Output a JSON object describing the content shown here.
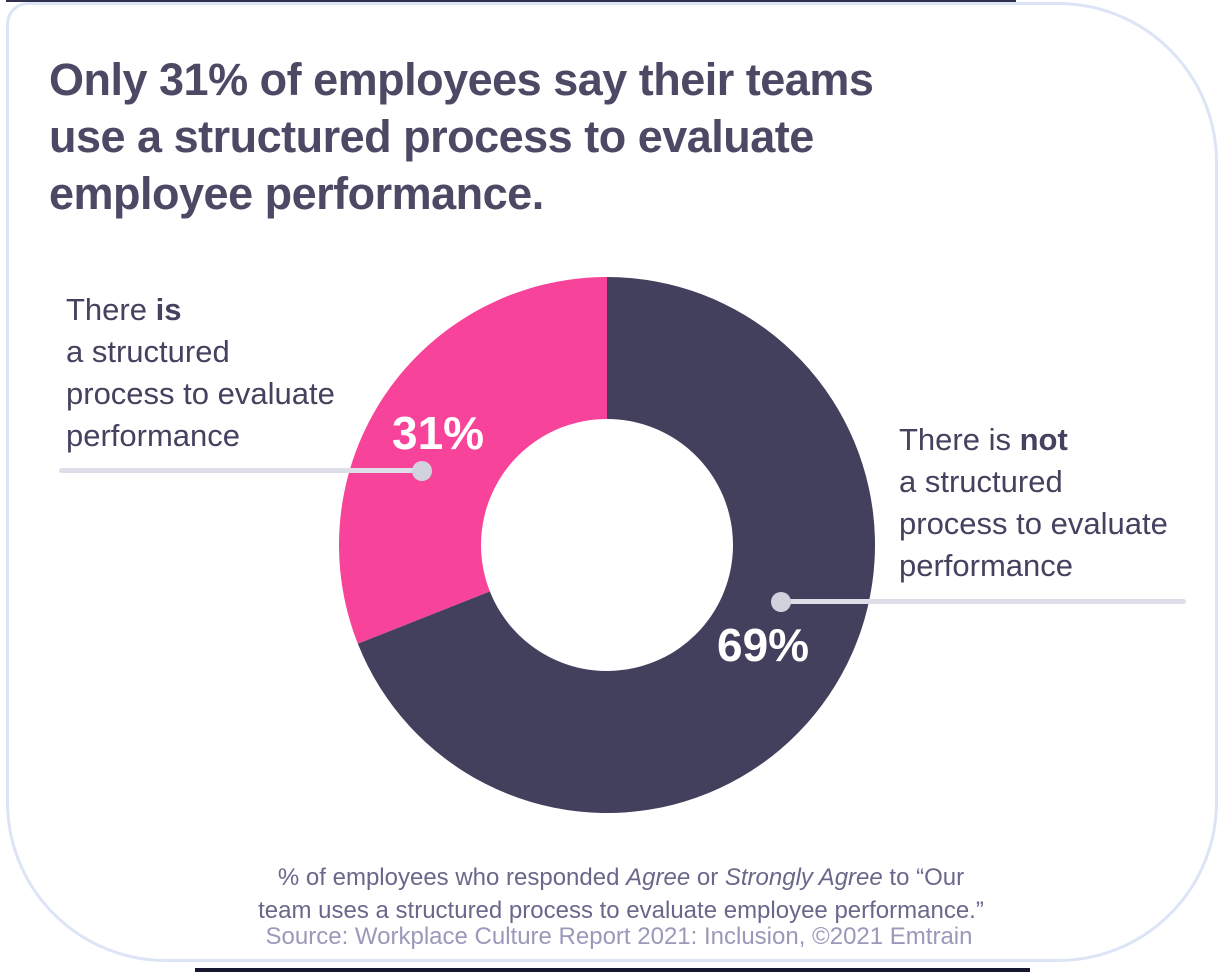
{
  "card": {
    "title": "Only 31% of employees say their teams\nuse a structured process to evaluate\nemployee performance.",
    "footnote": {
      "part1": "% of employees who responded ",
      "italic1": "Agree",
      "part2": " or ",
      "italic2": "Strongly Agree",
      "part3": " to “Our",
      "line2": "team uses a structured process to evaluate employee performance.”"
    },
    "source": "Source: Workplace Culture Report 2021: Inclusion, ©2021 Emtrain"
  },
  "labels": {
    "left": {
      "pre": "There ",
      "bold": "is",
      "line2": "a structured",
      "line3": "process to evaluate",
      "line4": "performance"
    },
    "right": {
      "pre": "There is ",
      "bold": "not",
      "line2": "a structured",
      "line3": "process to evaluate",
      "line4": "performance"
    }
  },
  "chart_data": {
    "type": "pie",
    "donut": true,
    "title": "Only 31% of employees say their teams use a structured process to evaluate employee performance.",
    "start_angle_deg": -90,
    "direction": "clockwise",
    "outer_radius": 268,
    "inner_radius": 126,
    "slices": [
      {
        "name": "There is not a structured process to evaluate performance",
        "value": 69,
        "label": "69%",
        "color": "#43405e"
      },
      {
        "name": "There is a structured process to evaluate performance",
        "value": 31,
        "label": "31%",
        "color": "#f8439a"
      }
    ]
  },
  "colors": {
    "card_border": "#dce4f6",
    "title_text": "#4c4965",
    "label_text": "#45425f",
    "footnote_text": "#69688b",
    "source_text": "#9a99b9",
    "leader_line": "#dedee9",
    "leader_dot": "#d2d2df",
    "top_accent": "#30314e",
    "bottom_accent": "#16172e"
  }
}
